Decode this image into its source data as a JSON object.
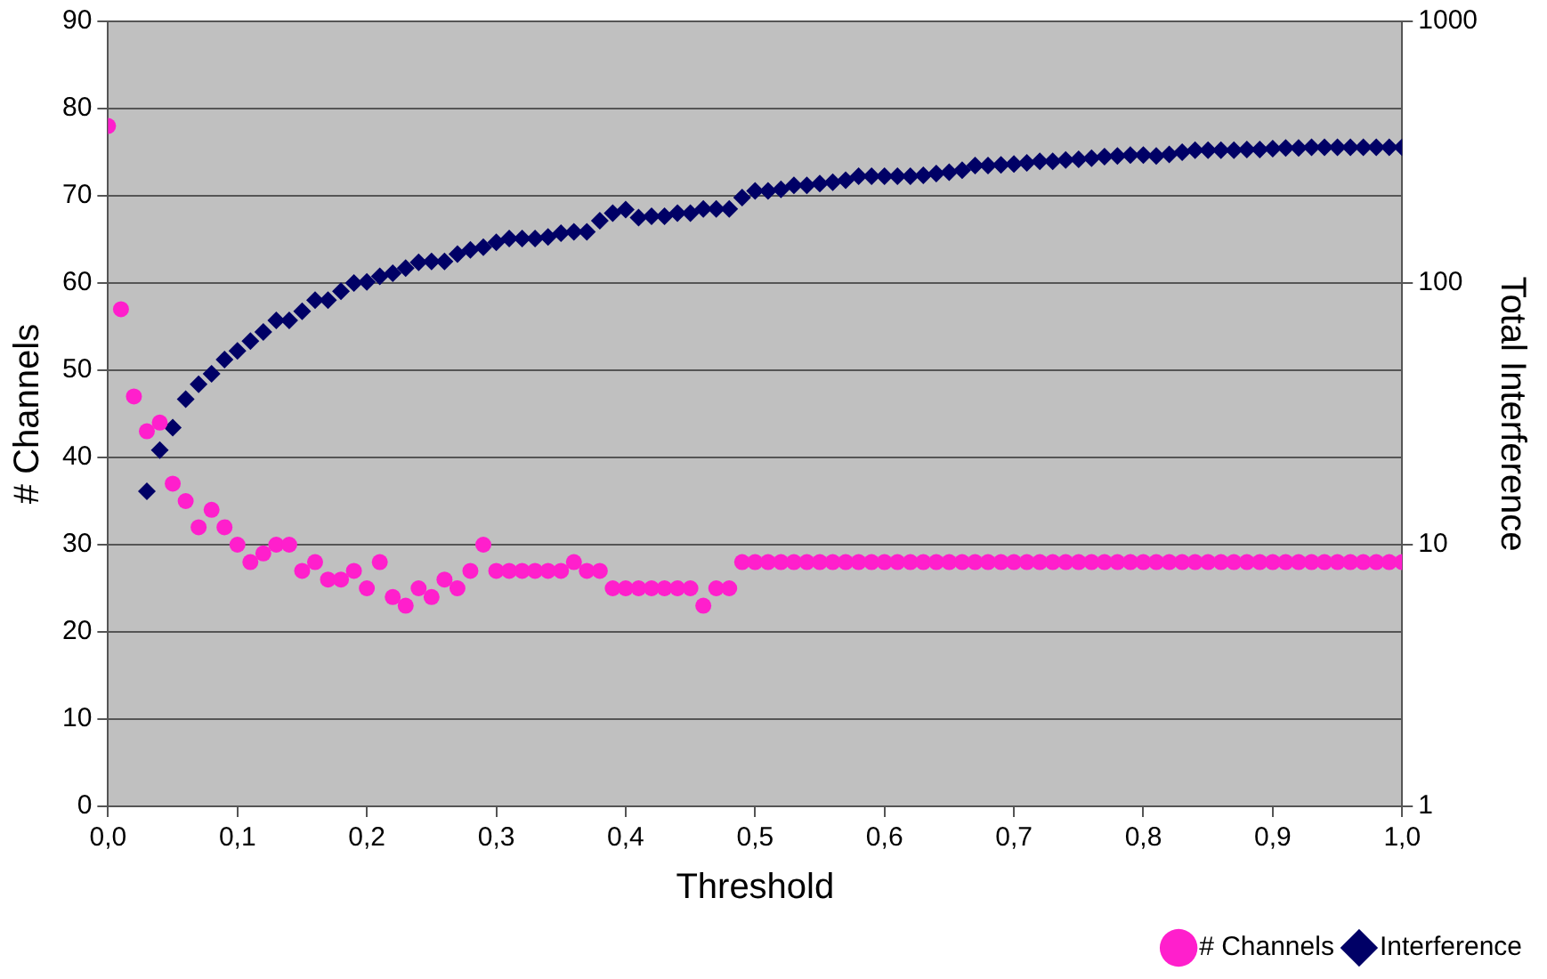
{
  "chart_data": {
    "type": "scatter",
    "xlabel": "Threshold",
    "ylabel": "# Channels",
    "y2label": "Total Interference",
    "x": [
      0,
      0.01,
      0.02,
      0.03,
      0.04,
      0.05,
      0.06,
      0.07,
      0.08,
      0.09,
      0.1,
      0.11,
      0.12,
      0.13,
      0.14,
      0.15,
      0.16,
      0.17,
      0.18,
      0.19,
      0.2,
      0.21,
      0.22,
      0.23,
      0.24,
      0.25,
      0.26,
      0.27,
      0.28,
      0.29,
      0.3,
      0.31,
      0.32,
      0.33,
      0.34,
      0.35,
      0.36,
      0.37,
      0.38,
      0.39,
      0.4,
      0.41,
      0.42,
      0.43,
      0.44,
      0.45,
      0.46,
      0.47,
      0.48,
      0.49,
      0.5,
      0.51,
      0.52,
      0.53,
      0.54,
      0.55,
      0.56,
      0.57,
      0.58,
      0.59,
      0.6,
      0.61,
      0.62,
      0.63,
      0.64,
      0.65,
      0.66,
      0.67,
      0.68,
      0.69,
      0.7,
      0.71,
      0.72,
      0.73,
      0.74,
      0.75,
      0.76,
      0.77,
      0.78,
      0.79,
      0.8,
      0.81,
      0.82,
      0.83,
      0.84,
      0.85,
      0.86,
      0.87,
      0.88,
      0.89,
      0.9,
      0.91,
      0.92,
      0.93,
      0.94,
      0.95,
      0.96,
      0.97,
      0.98,
      0.99,
      1
    ],
    "series": [
      {
        "name": "# Channels",
        "color": "#ff1fcc",
        "marker": "circle",
        "values": [
          78,
          57,
          47,
          43,
          44,
          37,
          35,
          32,
          34,
          32,
          30,
          28,
          29,
          30,
          30,
          27,
          28,
          26,
          26,
          27,
          25,
          28,
          24,
          23,
          25,
          24,
          26,
          25,
          27,
          30,
          27,
          27,
          27,
          27,
          27,
          27,
          28,
          27,
          27,
          25,
          25,
          25,
          25,
          25,
          25,
          25,
          23,
          25,
          25,
          28,
          28,
          28,
          28,
          28,
          28,
          28,
          28,
          28,
          28,
          28,
          28,
          28,
          28,
          28,
          28,
          28,
          28,
          28,
          28,
          28,
          28,
          28,
          28,
          28,
          28,
          28,
          28,
          28,
          28,
          28,
          28,
          28,
          28,
          28,
          28,
          28,
          28,
          28,
          28,
          28,
          28,
          28,
          28,
          28,
          28,
          28,
          28,
          28,
          28,
          28,
          28
        ]
      },
      {
        "name": "Interference",
        "color": "#000066",
        "marker": "diamond",
        "axis": "y2",
        "values": [
          null,
          null,
          null,
          16,
          23,
          28,
          36,
          41,
          45,
          51,
          55,
          60,
          65,
          72,
          72,
          78,
          86,
          86,
          93,
          100,
          101,
          106,
          109,
          114,
          120,
          121,
          121,
          129,
          134,
          137,
          143,
          148,
          148,
          148,
          150,
          155,
          157,
          157,
          173,
          185,
          191,
          178,
          180,
          180,
          185,
          185,
          192,
          192,
          192,
          212,
          225,
          225,
          228,
          236,
          236,
          240,
          243,
          247,
          256,
          256,
          256,
          256,
          256,
          258,
          262,
          265,
          270,
          281,
          281,
          283,
          285,
          288,
          292,
          292,
          295,
          297,
          300,
          304,
          306,
          308,
          308,
          306,
          310,
          316,
          322,
          322,
          322,
          322,
          324,
          324,
          326,
          328,
          328,
          330,
          330,
          330,
          330,
          330,
          330,
          330,
          330
        ]
      }
    ],
    "xlim": [
      0,
      1
    ],
    "xticks": [
      {
        "value": 0,
        "label": "0,0"
      },
      {
        "value": 0.1,
        "label": "0,1"
      },
      {
        "value": 0.2,
        "label": "0,2"
      },
      {
        "value": 0.3,
        "label": "0,3"
      },
      {
        "value": 0.4,
        "label": "0,4"
      },
      {
        "value": 0.5,
        "label": "0,5"
      },
      {
        "value": 0.6,
        "label": "0,6"
      },
      {
        "value": 0.7,
        "label": "0,7"
      },
      {
        "value": 0.8,
        "label": "0,8"
      },
      {
        "value": 0.9,
        "label": "0,9"
      },
      {
        "value": 1,
        "label": "1,0"
      }
    ],
    "ylim": [
      0,
      90
    ],
    "yticks": [
      0,
      10,
      20,
      30,
      40,
      50,
      60,
      70,
      80,
      90
    ],
    "y2lim": [
      1,
      1000
    ],
    "y2ticks": [
      1,
      10,
      100,
      1000
    ],
    "log": "y2",
    "grid": "y",
    "legend": "bottom right"
  }
}
